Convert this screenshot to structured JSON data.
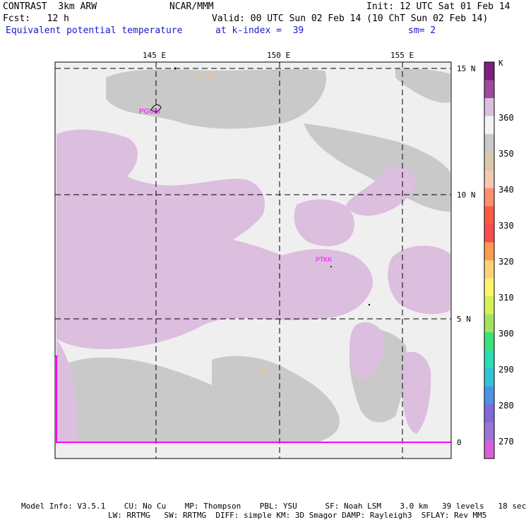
{
  "header": {
    "model_line": "CONTRAST  3km ARW",
    "org": "NCAR/MMM",
    "init": "Init: 12 UTC Sat 01 Feb 14",
    "fcst": "Fcst:   12 h",
    "valid": "Valid: 00 UTC Sun 02 Feb 14 (10 ChT Sun 02 Feb 14)",
    "field": "Equivalent potential temperature",
    "level": "at k-index =  39",
    "smooth": "sm= 2"
  },
  "map": {
    "lon_labels": [
      "145 E",
      "150 E",
      "155 E"
    ],
    "lat_labels": [
      "15 N",
      "10 N",
      "5 N",
      "0"
    ],
    "stations": [
      "PGUM",
      "PTKK"
    ],
    "colors": {
      "background": "#efefef",
      "field_purple": "#dcbede",
      "field_gray": "#c9c9c9",
      "field_tan": "#d9c7ae",
      "magenta_line": "#ff00ff",
      "station_label": "#ff00ff"
    }
  },
  "colorbar": {
    "unit": "K",
    "labels": [
      "360",
      "350",
      "340",
      "330",
      "320",
      "310",
      "300",
      "290",
      "280",
      "270"
    ],
    "colors": [
      "#7e1f7e",
      "#a04a9e",
      "#dcbede",
      "#f4f4f4",
      "#c9c9c9",
      "#d9c7ae",
      "#f4c9b0",
      "#ff8d6f",
      "#ff5a43",
      "#fb4d4d",
      "#ff9a4f",
      "#ffd27a",
      "#fff46c",
      "#d6f05a",
      "#a2e25e",
      "#3ee07a",
      "#2bdcb4",
      "#33c3d8",
      "#4c93e6",
      "#8069d9",
      "#9b74d6",
      "#d95fd9"
    ]
  },
  "footer": {
    "line1": "Model Info: V3.5.1    CU: No Cu    MP: Thompson    PBL: YSU      SF: Noah LSM    3.0 km   39 levels   18 sec",
    "line2": "LW: RRTMG   SW: RRTMG  DIFF: simple KM: 3D Smagor DAMP: Rayleigh3  SFLAY: Rev MM5"
  }
}
